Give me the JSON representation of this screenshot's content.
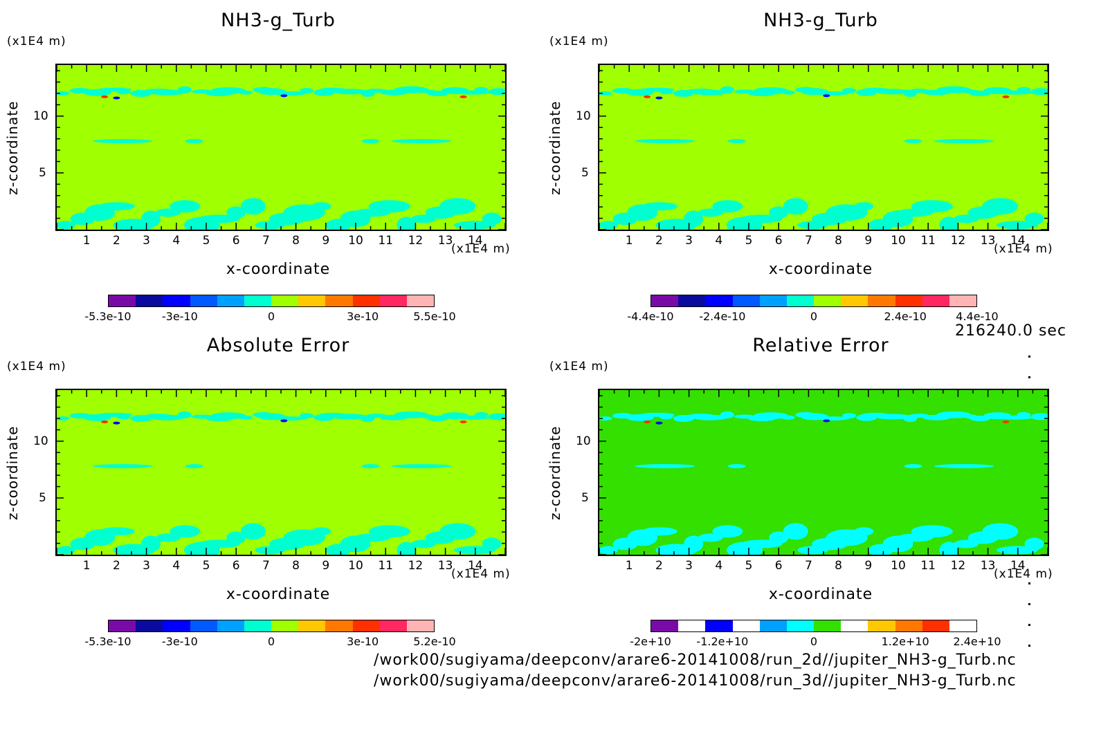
{
  "figure": {
    "timestamp": "216240.0 sec",
    "files": [
      "/work00/sugiyama/deepconv/arare6-20141008/run_2d//jupiter_NH3-g_Turb.nc",
      "/work00/sugiyama/deepconv/arare6-20141008/run_3d//jupiter_NH3-g_Turb.nc"
    ]
  },
  "chart_data": [
    {
      "type": "heatmap",
      "title": "NH3-g_Turb",
      "xlabel": "x-coordinate",
      "ylabel": "z-coordinate",
      "x_unit": "(x1E4 m)",
      "y_unit": "(x1E4 m)",
      "xlim": [
        0,
        15
      ],
      "ylim": [
        0,
        14.5
      ],
      "xticks": [
        "1",
        "2",
        "3",
        "4",
        "5",
        "6",
        "7",
        "8",
        "9",
        "10",
        "11",
        "12",
        "13",
        "14"
      ],
      "yticks": [
        "5",
        "10"
      ],
      "colorbar": {
        "colors": [
          "#7a0aa8",
          "#0a0aa0",
          "#0000ff",
          "#005aff",
          "#00a0ff",
          "#00ffd0",
          "#a0ff00",
          "#ffc800",
          "#ff7800",
          "#ff3000",
          "#ff2860",
          "#ffb4b4"
        ],
        "labels": [
          "-5.3e-10",
          "-3e-10",
          "0",
          "3e-10",
          "5.5e-10"
        ]
      },
      "background": "#a0ff00",
      "anomaly": "#00ffd0"
    },
    {
      "type": "heatmap",
      "title": "NH3-g_Turb",
      "xlabel": "x-coordinate",
      "ylabel": "z-coordinate",
      "x_unit": "(x1E4 m)",
      "y_unit": "(x1E4 m)",
      "xlim": [
        0,
        15
      ],
      "ylim": [
        0,
        14.5
      ],
      "xticks": [
        "1",
        "2",
        "3",
        "4",
        "5",
        "6",
        "7",
        "8",
        "9",
        "10",
        "11",
        "12",
        "13",
        "14"
      ],
      "yticks": [
        "5",
        "10"
      ],
      "colorbar": {
        "colors": [
          "#7a0aa8",
          "#0a0aa0",
          "#0000ff",
          "#005aff",
          "#00a0ff",
          "#00ffd0",
          "#a0ff00",
          "#ffc800",
          "#ff7800",
          "#ff3000",
          "#ff2860",
          "#ffb4b4"
        ],
        "labels": [
          "-4.4e-10",
          "-2.4e-10",
          "0",
          "2.4e-10",
          "4.4e-10"
        ]
      },
      "background": "#a0ff00",
      "anomaly": "#00ffd0"
    },
    {
      "type": "heatmap",
      "title": "Absolute Error",
      "xlabel": "x-coordinate",
      "ylabel": "z-coordinate",
      "x_unit": "(x1E4 m)",
      "y_unit": "(x1E4 m)",
      "xlim": [
        0,
        15
      ],
      "ylim": [
        0,
        14.5
      ],
      "xticks": [
        "1",
        "2",
        "3",
        "4",
        "5",
        "6",
        "7",
        "8",
        "9",
        "10",
        "11",
        "12",
        "13",
        "14"
      ],
      "yticks": [
        "5",
        "10"
      ],
      "colorbar": {
        "colors": [
          "#7a0aa8",
          "#0a0aa0",
          "#0000ff",
          "#005aff",
          "#00a0ff",
          "#00ffd0",
          "#a0ff00",
          "#ffc800",
          "#ff7800",
          "#ff3000",
          "#ff2860",
          "#ffb4b4"
        ],
        "labels": [
          "-5.3e-10",
          "-3e-10",
          "0",
          "3e-10",
          "5.2e-10"
        ]
      },
      "background": "#a0ff00",
      "anomaly": "#00ffd0"
    },
    {
      "type": "heatmap",
      "title": "Relative Error",
      "xlabel": "x-coordinate",
      "ylabel": "z-coordinate",
      "x_unit": "(x1E4 m)",
      "y_unit": "(x1E4 m)",
      "xlim": [
        0,
        15
      ],
      "ylim": [
        0,
        14.5
      ],
      "xticks": [
        "1",
        "2",
        "3",
        "4",
        "5",
        "6",
        "7",
        "8",
        "9",
        "10",
        "11",
        "12",
        "13",
        "14"
      ],
      "yticks": [
        "5",
        "10"
      ],
      "colorbar": {
        "colors": [
          "#7a0aa8",
          "#ffffff",
          "#0000ff",
          "#ffffff",
          "#00a0ff",
          "#00ffff",
          "#33e000",
          "#ffffff",
          "#ffc800",
          "#ff7800",
          "#ff3000",
          "#ffffff"
        ],
        "labels": [
          "-2e+10",
          "-1.2e+10",
          "0",
          "1.2e+10",
          "2.4e+10"
        ]
      },
      "background": "#33e000",
      "anomaly": "#00ffff"
    }
  ]
}
